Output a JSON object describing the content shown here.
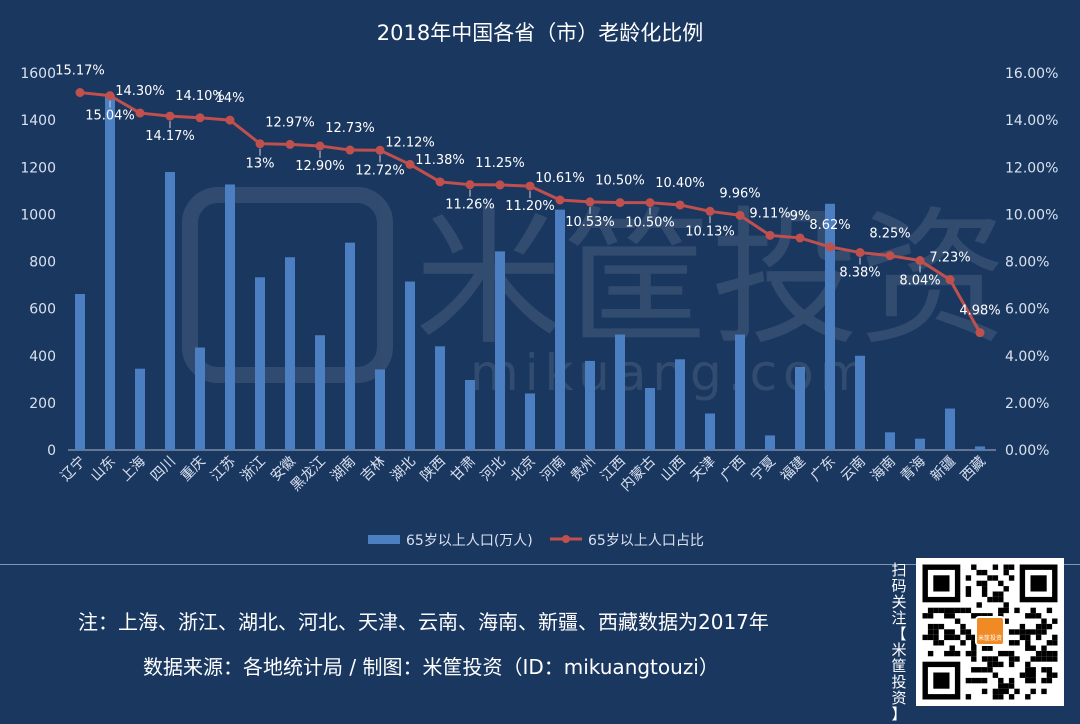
{
  "chart_data": {
    "type": "bar+line",
    "title": "2018年中国各省（市）老龄化比例",
    "categories": [
      "辽宁",
      "山东",
      "上海",
      "四川",
      "重庆",
      "江苏",
      "浙江",
      "安徽",
      "黑龙江",
      "湖南",
      "吉林",
      "湖北",
      "陕西",
      "甘肃",
      "河北",
      "北京",
      "河南",
      "贵州",
      "江西",
      "内蒙古",
      "山西",
      "天津",
      "广西",
      "宁夏",
      "福建",
      "广东",
      "云南",
      "海南",
      "青海",
      "新疆",
      "西藏"
    ],
    "series": [
      {
        "name": "65岁以上人口(万人)",
        "type": "bar",
        "axis": "left",
        "color": "#4c7fc1",
        "values": [
          662,
          1505,
          345,
          1180,
          435,
          1127,
          733,
          818,
          487,
          880,
          342,
          715,
          440,
          297,
          843,
          240,
          1020,
          378,
          490,
          263,
          385,
          155,
          490,
          62,
          353,
          1045,
          400,
          75,
          48,
          176,
          15
        ]
      },
      {
        "name": "65岁以上人口占比",
        "type": "line",
        "axis": "right",
        "color": "#c0504d",
        "values": [
          15.17,
          15.04,
          14.3,
          14.17,
          14.1,
          14.0,
          13.0,
          12.97,
          12.9,
          12.73,
          12.72,
          12.12,
          11.38,
          11.26,
          11.25,
          11.2,
          10.61,
          10.53,
          10.5,
          10.5,
          10.4,
          10.13,
          9.96,
          9.11,
          9.0,
          8.62,
          8.38,
          8.25,
          8.04,
          7.23,
          4.98
        ],
        "labels": [
          "15.17%",
          "15.04%",
          "14.30%",
          "14.17%",
          "14.10%",
          "14%",
          "13%",
          "12.97%",
          "12.90%",
          "12.73%",
          "12.72%",
          "12.12%",
          "11.38%",
          "11.26%",
          "11.25%",
          "11.20%",
          "10.61%",
          "10.53%",
          "10.50%",
          "10.50%",
          "10.40%",
          "10.13%",
          "9.96%",
          "9.11%",
          "9%",
          "8.62%",
          "8.38%",
          "8.25%",
          "8.04%",
          "7.23%",
          "4.98%"
        ]
      }
    ],
    "y_left": {
      "min": 0,
      "max": 1600,
      "ticks": [
        "0",
        "200",
        "400",
        "600",
        "800",
        "1000",
        "1200",
        "1400",
        "1600"
      ]
    },
    "y_right": {
      "min": 0,
      "max": 16,
      "ticks": [
        "0.00%",
        "2.00%",
        "4.00%",
        "6.00%",
        "8.00%",
        "10.00%",
        "12.00%",
        "14.00%",
        "16.00%"
      ]
    },
    "legend_position": "bottom"
  },
  "watermark": {
    "brand": "米筐投资",
    "url": "mikuang.com"
  },
  "footer": {
    "note": "注：上海、浙江、湖北、河北、天津、云南、海南、新疆、西藏数据为2017年",
    "source": "数据来源：各地统计局 / 制图：米筐投资（ID：mikuangtouzi）",
    "qr_caption": [
      "扫",
      "码",
      "关",
      "注",
      "【",
      "米",
      "筐",
      "投",
      "资",
      "】"
    ],
    "qr_logo_text": "米筐投资"
  },
  "colors": {
    "background": "#1a3760",
    "bar": "#4c7fc1",
    "line": "#c0504d",
    "text": "#ffffff",
    "axis_text": "#d9e1ee"
  }
}
